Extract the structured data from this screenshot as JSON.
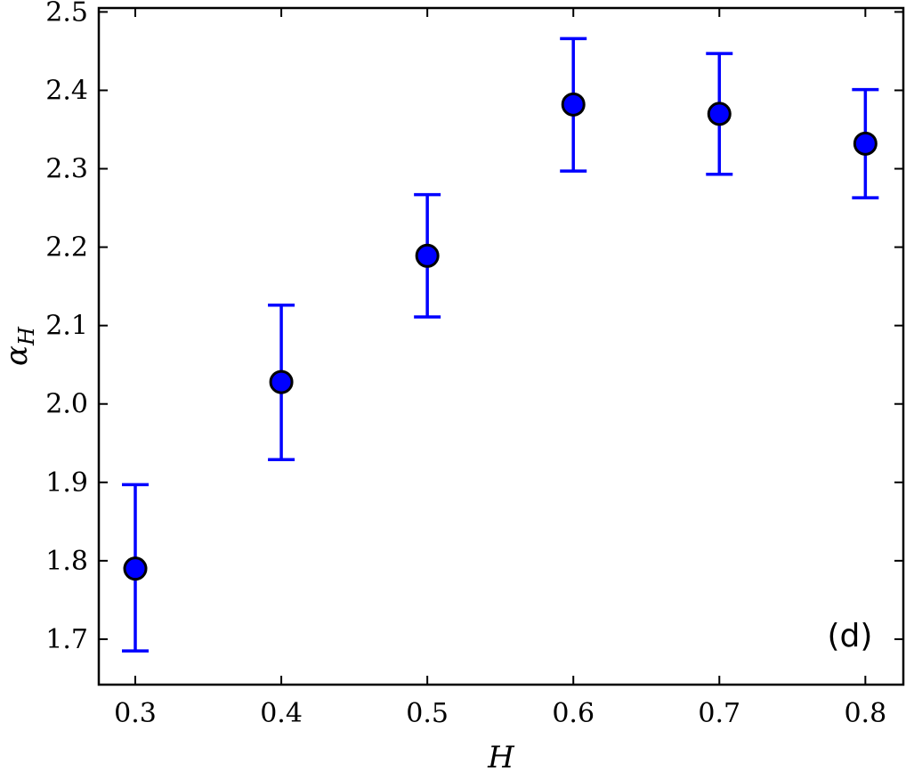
{
  "chart_data": {
    "type": "scatter",
    "xlabel": "H",
    "ylabel": "α",
    "ylabel_sub": "H",
    "panel_label": "(d)",
    "xlim": [
      0.275,
      0.826
    ],
    "ylim": [
      1.642,
      2.505
    ],
    "x_ticks": [
      "0.3",
      "0.4",
      "0.5",
      "0.6",
      "0.7",
      "0.8"
    ],
    "y_ticks": [
      "1.7",
      "1.8",
      "1.9",
      "2.0",
      "2.1",
      "2.2",
      "2.3",
      "2.4",
      "2.5"
    ],
    "grid": false,
    "points": [
      {
        "x": 0.3,
        "y": 1.79,
        "err_low": 1.685,
        "err_high": 1.897
      },
      {
        "x": 0.4,
        "y": 2.028,
        "err_low": 1.929,
        "err_high": 2.126
      },
      {
        "x": 0.5,
        "y": 2.189,
        "err_low": 2.111,
        "err_high": 2.267
      },
      {
        "x": 0.6,
        "y": 2.382,
        "err_low": 2.297,
        "err_high": 2.466
      },
      {
        "x": 0.7,
        "y": 2.37,
        "err_low": 2.293,
        "err_high": 2.447
      },
      {
        "x": 0.8,
        "y": 2.332,
        "err_low": 2.263,
        "err_high": 2.401
      }
    ],
    "colors": {
      "marker_fill": "#0000ff",
      "marker_edge": "#000000",
      "errorbar": "#0000ff"
    }
  }
}
